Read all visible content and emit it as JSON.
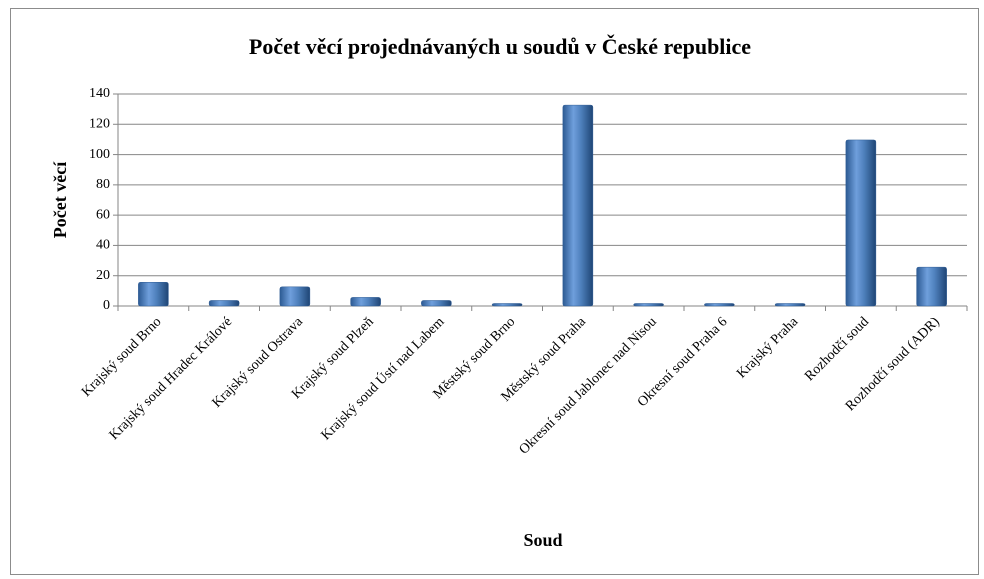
{
  "chart_data": {
    "type": "bar",
    "title": "Počet věcí projednávaných u soudů v České republice",
    "x_label": "Soud",
    "y_label": "Počet věcí",
    "categories": [
      "Krajský soud Brno",
      "Krajský soud Hradec Králové",
      "Krajský soud Ostrava",
      "Krajský soud Plzeň",
      "Krajský soud Ústí nad Labem",
      "Městský soud Brno",
      "Městský soud Praha",
      "Okresní soud Jablonec nad Nisou",
      "Okresní soud Praha 6",
      "Krajský Praha",
      "Rozhodčí soud",
      "Rozhodčí soud (ADR)"
    ],
    "values": [
      15,
      3,
      12,
      5,
      3,
      1,
      132,
      1,
      1,
      1,
      109,
      25
    ],
    "color": "#4f81bd",
    "ylim": [
      0,
      140
    ],
    "yticks": [
      0,
      20,
      40,
      60,
      80,
      100,
      120,
      140
    ],
    "grid": true
  }
}
